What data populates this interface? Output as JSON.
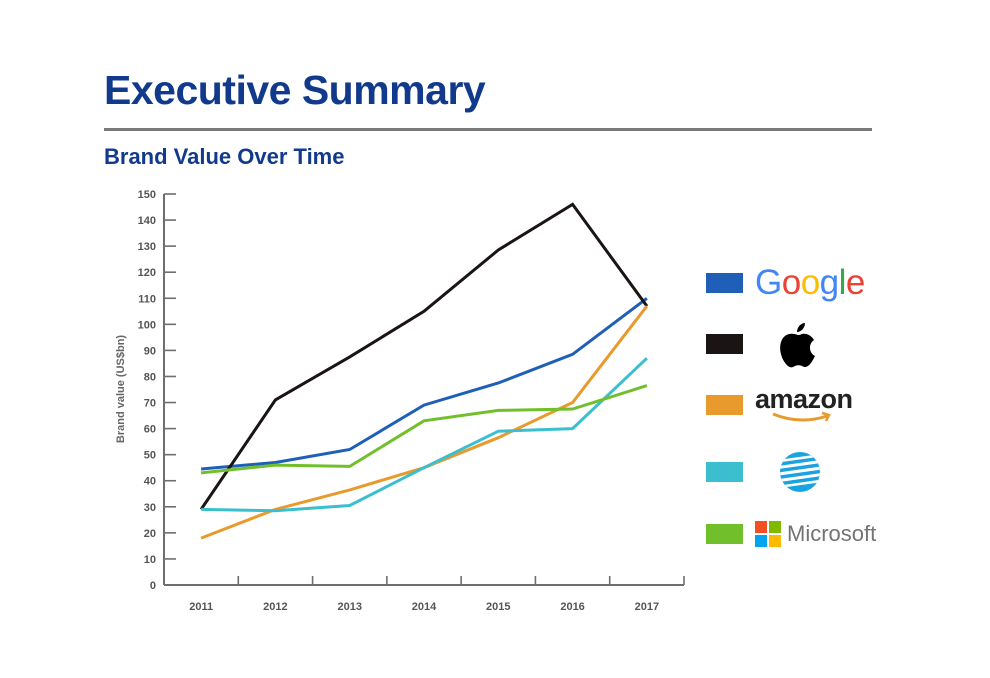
{
  "header": {
    "title": "Executive Summary",
    "subtitle": "Brand Value Over Time"
  },
  "colors": {
    "title": "#123a8c",
    "google": "#1f5fb8",
    "apple": "#1a1414",
    "amazon": "#e99a2c",
    "att": "#3bbfcf",
    "microsoft": "#72bf2c"
  },
  "legend": [
    {
      "key": "google",
      "logo": "google-logo",
      "text": "Google"
    },
    {
      "key": "apple",
      "logo": "apple-logo",
      "text": ""
    },
    {
      "key": "amazon",
      "logo": "amazon-logo",
      "text": "amazon"
    },
    {
      "key": "att",
      "logo": "att-globe-logo",
      "text": ""
    },
    {
      "key": "microsoft",
      "logo": "microsoft-logo",
      "text": "Microsoft"
    }
  ],
  "chart_data": {
    "type": "line",
    "title": "Brand Value Over Time",
    "xlabel": "",
    "ylabel": "Brand value (US$bn)",
    "categories": [
      "2011",
      "2012",
      "2013",
      "2014",
      "2015",
      "2016",
      "2017"
    ],
    "ylim": [
      0,
      150
    ],
    "yticks": [
      0,
      10,
      20,
      30,
      40,
      50,
      60,
      70,
      80,
      90,
      100,
      110,
      120,
      130,
      140,
      150
    ],
    "grid": false,
    "legend_position": "right",
    "series": [
      {
        "name": "Google",
        "key": "google",
        "values": [
          44.5,
          47,
          52,
          69,
          77.5,
          88.5,
          110
        ]
      },
      {
        "name": "Apple",
        "key": "apple",
        "values": [
          29,
          71,
          87.5,
          105,
          128.5,
          146,
          107
        ]
      },
      {
        "name": "Amazon",
        "key": "amazon",
        "values": [
          18,
          29,
          36.5,
          45,
          56.5,
          70,
          107
        ]
      },
      {
        "name": "AT&T",
        "key": "att",
        "values": [
          29,
          28.5,
          30.5,
          45,
          59,
          60,
          87
        ]
      },
      {
        "name": "Microsoft",
        "key": "microsoft",
        "values": [
          43,
          46,
          45.5,
          63,
          67,
          67.5,
          76.5
        ]
      }
    ]
  }
}
